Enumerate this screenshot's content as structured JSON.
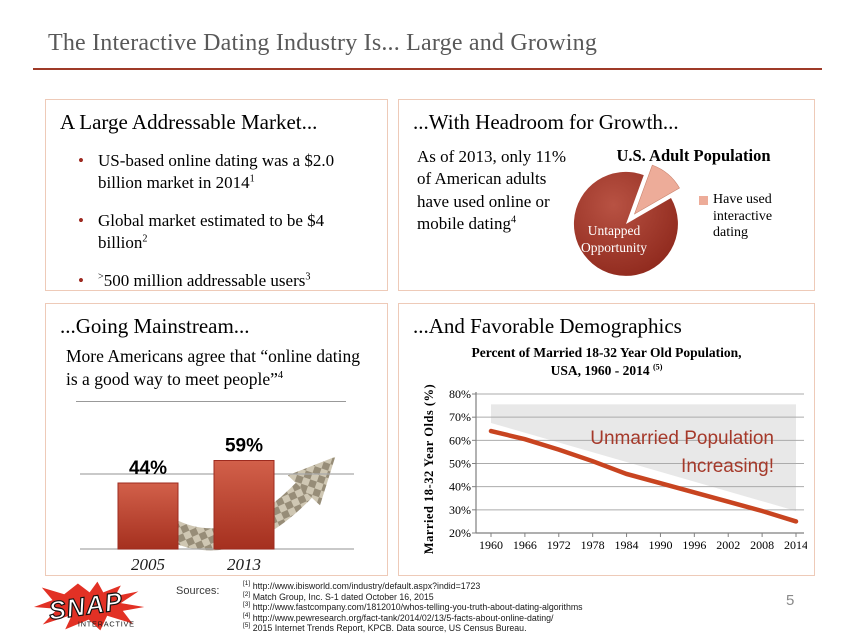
{
  "slide": {
    "title": "The Interactive Dating Industry Is... Large and Growing",
    "page_number": "5"
  },
  "quadrants": {
    "market": {
      "title": "A Large Addressable Market...",
      "bullets": [
        {
          "pre_sup": "",
          "text": "US-based online dating was a $2.0 billion market in 2014",
          "sup": "1"
        },
        {
          "pre_sup": "",
          "text": "Global market estimated to be $4 billion",
          "sup": "2"
        },
        {
          "pre_sup": ">",
          "text": "500 million addressable users",
          "sup": "3"
        }
      ]
    },
    "headroom": {
      "title": "...With Headroom for Growth...",
      "body_text": "As of 2013, only 11% of American adults have used online or mobile dating",
      "body_sup": "4",
      "pie_label_line1": "Untapped",
      "pie_label_line2": "Opportunity"
    },
    "mainstream": {
      "title": "...Going Mainstream...",
      "quote_text": "More Americans agree that “online dating is a good way to meet people”",
      "quote_sup": "4"
    },
    "demographics": {
      "title": "...And Favorable Demographics",
      "chart_title_line1": "Percent of Married 18-32 Year Old Population,",
      "chart_title_line2": "USA, 1960 - 2014 ",
      "chart_title_sup": "(5)",
      "annotation_line1": "Unmarried Population",
      "annotation_line2": "Increasing!"
    }
  },
  "footer": {
    "logo": {
      "text": "SNAP",
      "subtext": "INTERACTIVE"
    },
    "sources_label": "Sources:",
    "footnotes": [
      {
        "marker": "[1]",
        "text": "http://www.ibisworld.com/industry/default.aspx?indid=1723"
      },
      {
        "marker": "[2]",
        "text": "Match Group, Inc. S-1 dated October 16, 2015"
      },
      {
        "marker": "[3]",
        "text": "http://www.fastcompany.com/1812010/whos-telling-you-truth-about-dating-algorithms"
      },
      {
        "marker": "[4]",
        "text": "http://www.pewresearch.org/fact-tank/2014/02/13/5-facts-about-online-dating/"
      },
      {
        "marker": "[5]",
        "text": "2015 Internet Trends Report, KPCB.  Data source, US Census Bureau."
      }
    ]
  },
  "colors": {
    "accent_red": "#9e3a28",
    "box_border": "#eecab8",
    "pie_dark_red": "#8c261a",
    "salmon": "#edac99",
    "bar_red": "#b5392b",
    "line_red": "#c84420",
    "annotation_red": "#a5392a",
    "title_gray": "#595959"
  },
  "chart_data": [
    {
      "type": "pie",
      "title": "U.S. Adult Population",
      "slices": [
        {
          "label": "Untapped Opportunity",
          "value": 89
        },
        {
          "label": "Have used interactive dating",
          "value": 11
        }
      ],
      "legend_position": "right",
      "exploded_slice": "Have used interactive dating"
    },
    {
      "type": "bar",
      "title": "Americans agreeing online dating is a good way to meet people",
      "categories": [
        "2005",
        "2013"
      ],
      "values": [
        44,
        59
      ],
      "data_labels": [
        "44%",
        "59%"
      ],
      "ylim": [
        0,
        100
      ],
      "gridline_at": 50
    },
    {
      "type": "line",
      "title": "Percent of Married 18-32 Year Old Population, USA, 1960 - 2014 (5)",
      "xlabel": "",
      "ylabel": "Married 18-32 Year Olds (%)",
      "x": [
        1960,
        1966,
        1972,
        1978,
        1984,
        1990,
        1996,
        2002,
        2008,
        2014
      ],
      "series": [
        {
          "name": "Married 18-32 year olds",
          "values": [
            64,
            60.5,
            56,
            51,
            45.5,
            41.5,
            37.5,
            33.5,
            29.5,
            25
          ]
        }
      ],
      "ylim": [
        20,
        80
      ],
      "y_tick_step": 10,
      "grid": true,
      "annotation": "Unmarried Population Increasing!",
      "shaded_band": {
        "top": 75.5,
        "left_bottom": 67.5,
        "right_bottom": 29.5,
        "label": "Unmarried population"
      }
    }
  ]
}
